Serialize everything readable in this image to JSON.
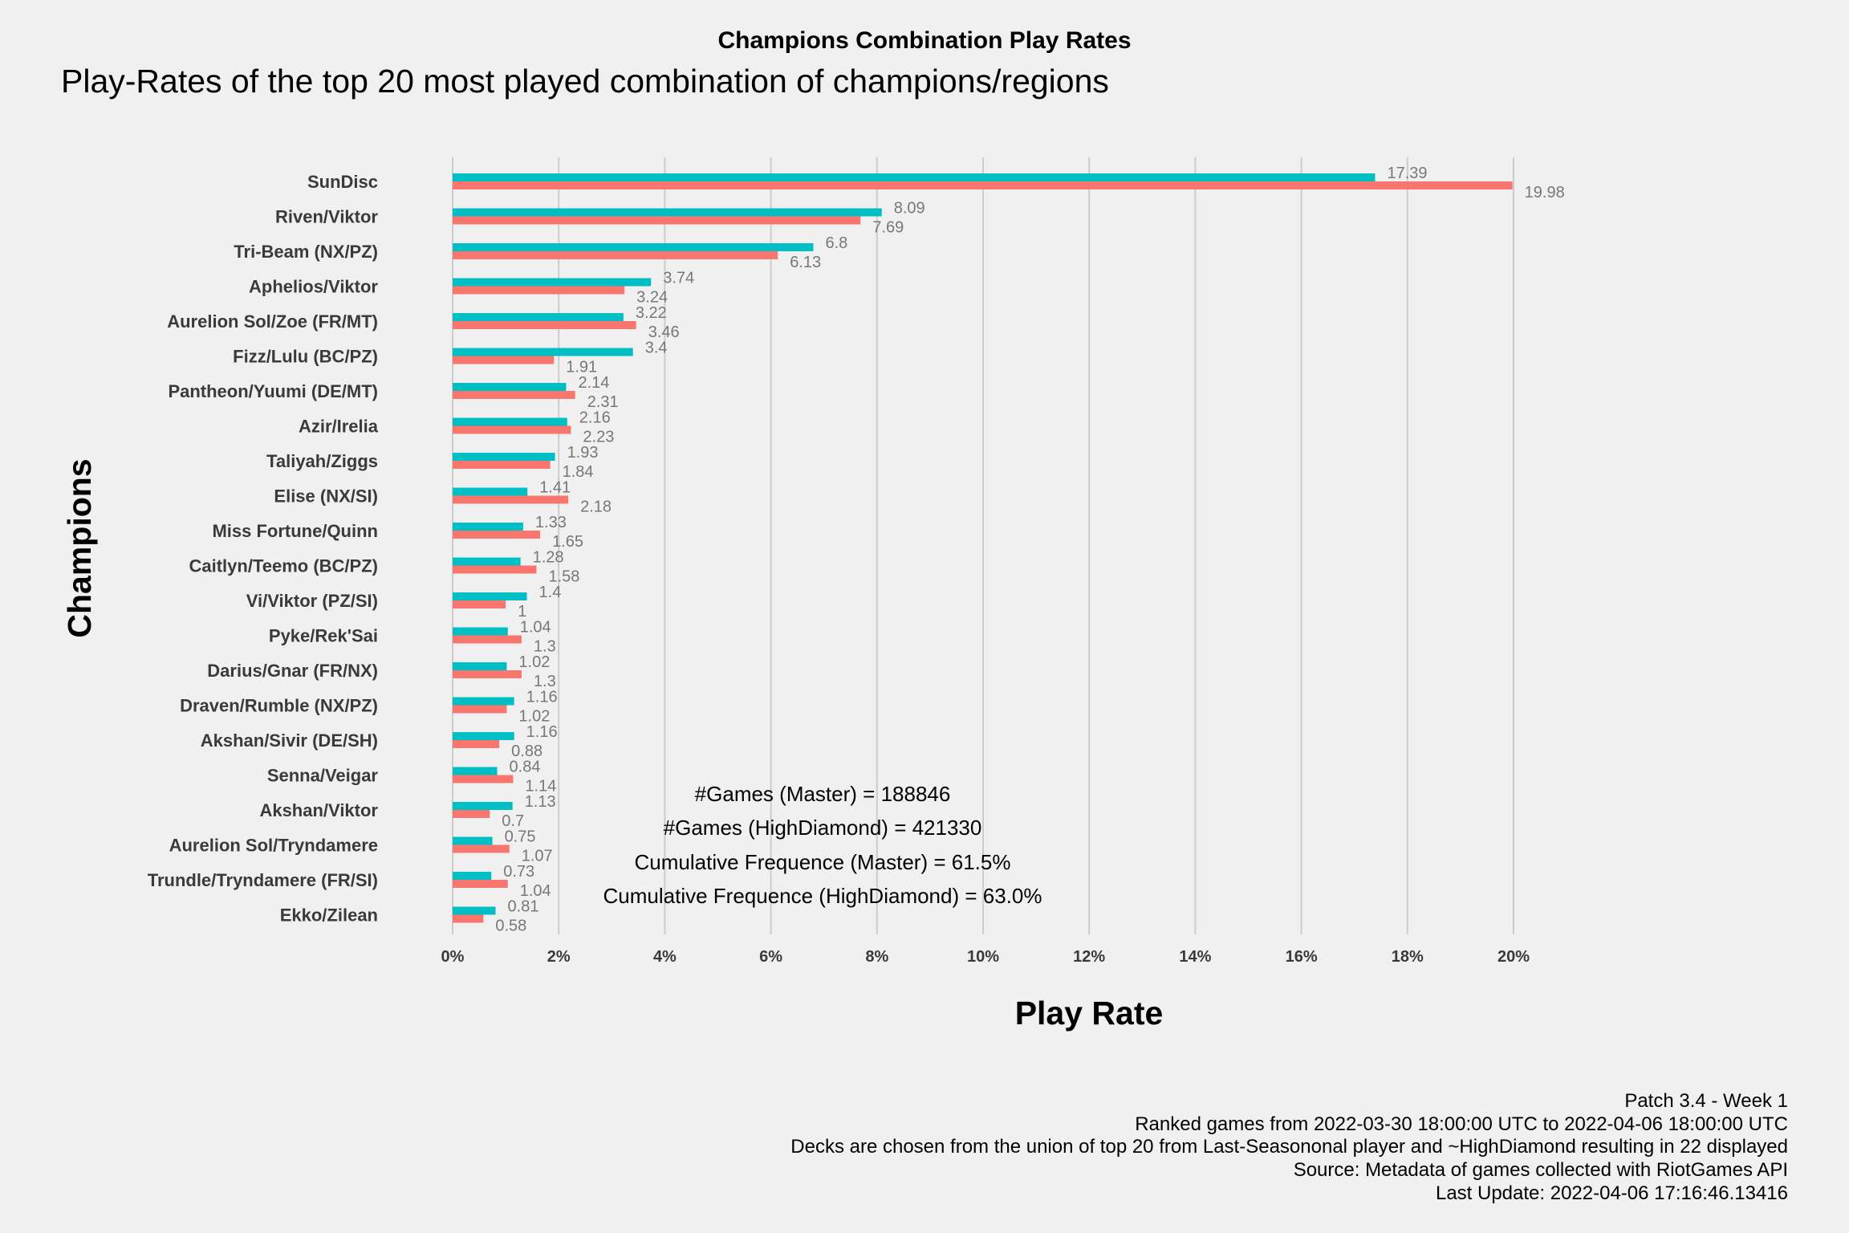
{
  "title": "Champions Combination Play Rates",
  "subtitle": "Play-Rates of the top 20 most played combination of champions/regions",
  "stats": {
    "games_master": "#Games (Master) = 188846",
    "games_highdiamond": "#Games (HighDiamond) = 421330",
    "cum_master": "Cumulative Frequence (Master) = 61.5%",
    "cum_highdiamond": "Cumulative Frequence (HighDiamond) = 63.0%"
  },
  "footer": {
    "line1": "Patch 3.4 - Week 1",
    "line2": "Ranked games from 2022-03-30 18:00:00 UTC to 2022-04-06 18:00:00 UTC",
    "line3": "Decks are chosen from the union of top 20 from Last-Seasononal player and ~HighDiamond resulting in 22 displayed",
    "line4": "Source: Metadata of games collected with RiotGames API",
    "line5": "Last Update: 2022-04-06 17:16:46.13416"
  },
  "colors": {
    "teal": "#00bfc4",
    "salmon": "#f8766d",
    "grid": "#cccccc"
  },
  "chart_data": {
    "type": "bar",
    "orientation": "horizontal",
    "xlabel": "Play Rate",
    "ylabel": "Champions",
    "xlim": [
      0,
      20
    ],
    "xticks": [
      "0%",
      "2%",
      "4%",
      "6%",
      "8%",
      "10%",
      "12%",
      "14%",
      "16%",
      "18%",
      "20%"
    ],
    "grid": "vertical",
    "categories": [
      "SunDisc",
      "Riven/Viktor",
      "Tri-Beam (NX/PZ)",
      "Aphelios/Viktor",
      "Aurelion Sol/Zoe (FR/MT)",
      "Fizz/Lulu (BC/PZ)",
      "Pantheon/Yuumi (DE/MT)",
      "Azir/Irelia",
      "Taliyah/Ziggs",
      "Elise (NX/SI)",
      "Miss Fortune/Quinn",
      "Caitlyn/Teemo (BC/PZ)",
      "Vi/Viktor (PZ/SI)",
      "Pyke/Rek'Sai",
      "Darius/Gnar (FR/NX)",
      "Draven/Rumble (NX/PZ)",
      "Akshan/Sivir (DE/SH)",
      "Senna/Veigar",
      "Akshan/Viktor",
      "Aurelion Sol/Tryndamere",
      "Trundle/Tryndamere (FR/SI)",
      "Ekko/Zilean"
    ],
    "series": [
      {
        "color": "#00bfc4",
        "values": [
          17.39,
          8.09,
          6.8,
          3.74,
          3.22,
          3.4,
          2.14,
          2.16,
          1.93,
          1.41,
          1.33,
          1.28,
          1.4,
          1.04,
          1.02,
          1.16,
          1.16,
          0.84,
          1.13,
          0.75,
          0.73,
          0.81
        ],
        "labels": [
          "17.39",
          "8.09",
          "6.8",
          "3.74",
          "3.22",
          "3.4",
          "2.14",
          "2.16",
          "1.93",
          "1.41",
          "1.33",
          "1.28",
          "1.4",
          "1.04",
          "1.02",
          "1.16",
          "1.16",
          "0.84",
          "1.13",
          "0.75",
          "0.73",
          "0.81"
        ]
      },
      {
        "color": "#f8766d",
        "values": [
          19.98,
          7.69,
          6.13,
          3.24,
          3.46,
          1.91,
          2.31,
          2.23,
          1.84,
          2.18,
          1.65,
          1.58,
          1,
          1.3,
          1.3,
          1.02,
          0.88,
          1.14,
          0.7,
          1.07,
          1.04,
          0.58
        ],
        "labels": [
          "19.98",
          "7.69",
          "6.13",
          "3.24",
          "3.46",
          "1.91",
          "2.31",
          "2.23",
          "1.84",
          "2.18",
          "1.65",
          "1.58",
          "1",
          "1.3",
          "1.3",
          "1.02",
          "0.88",
          "1.14",
          "0.7",
          "1.07",
          "1.04",
          "0.58"
        ]
      }
    ]
  }
}
